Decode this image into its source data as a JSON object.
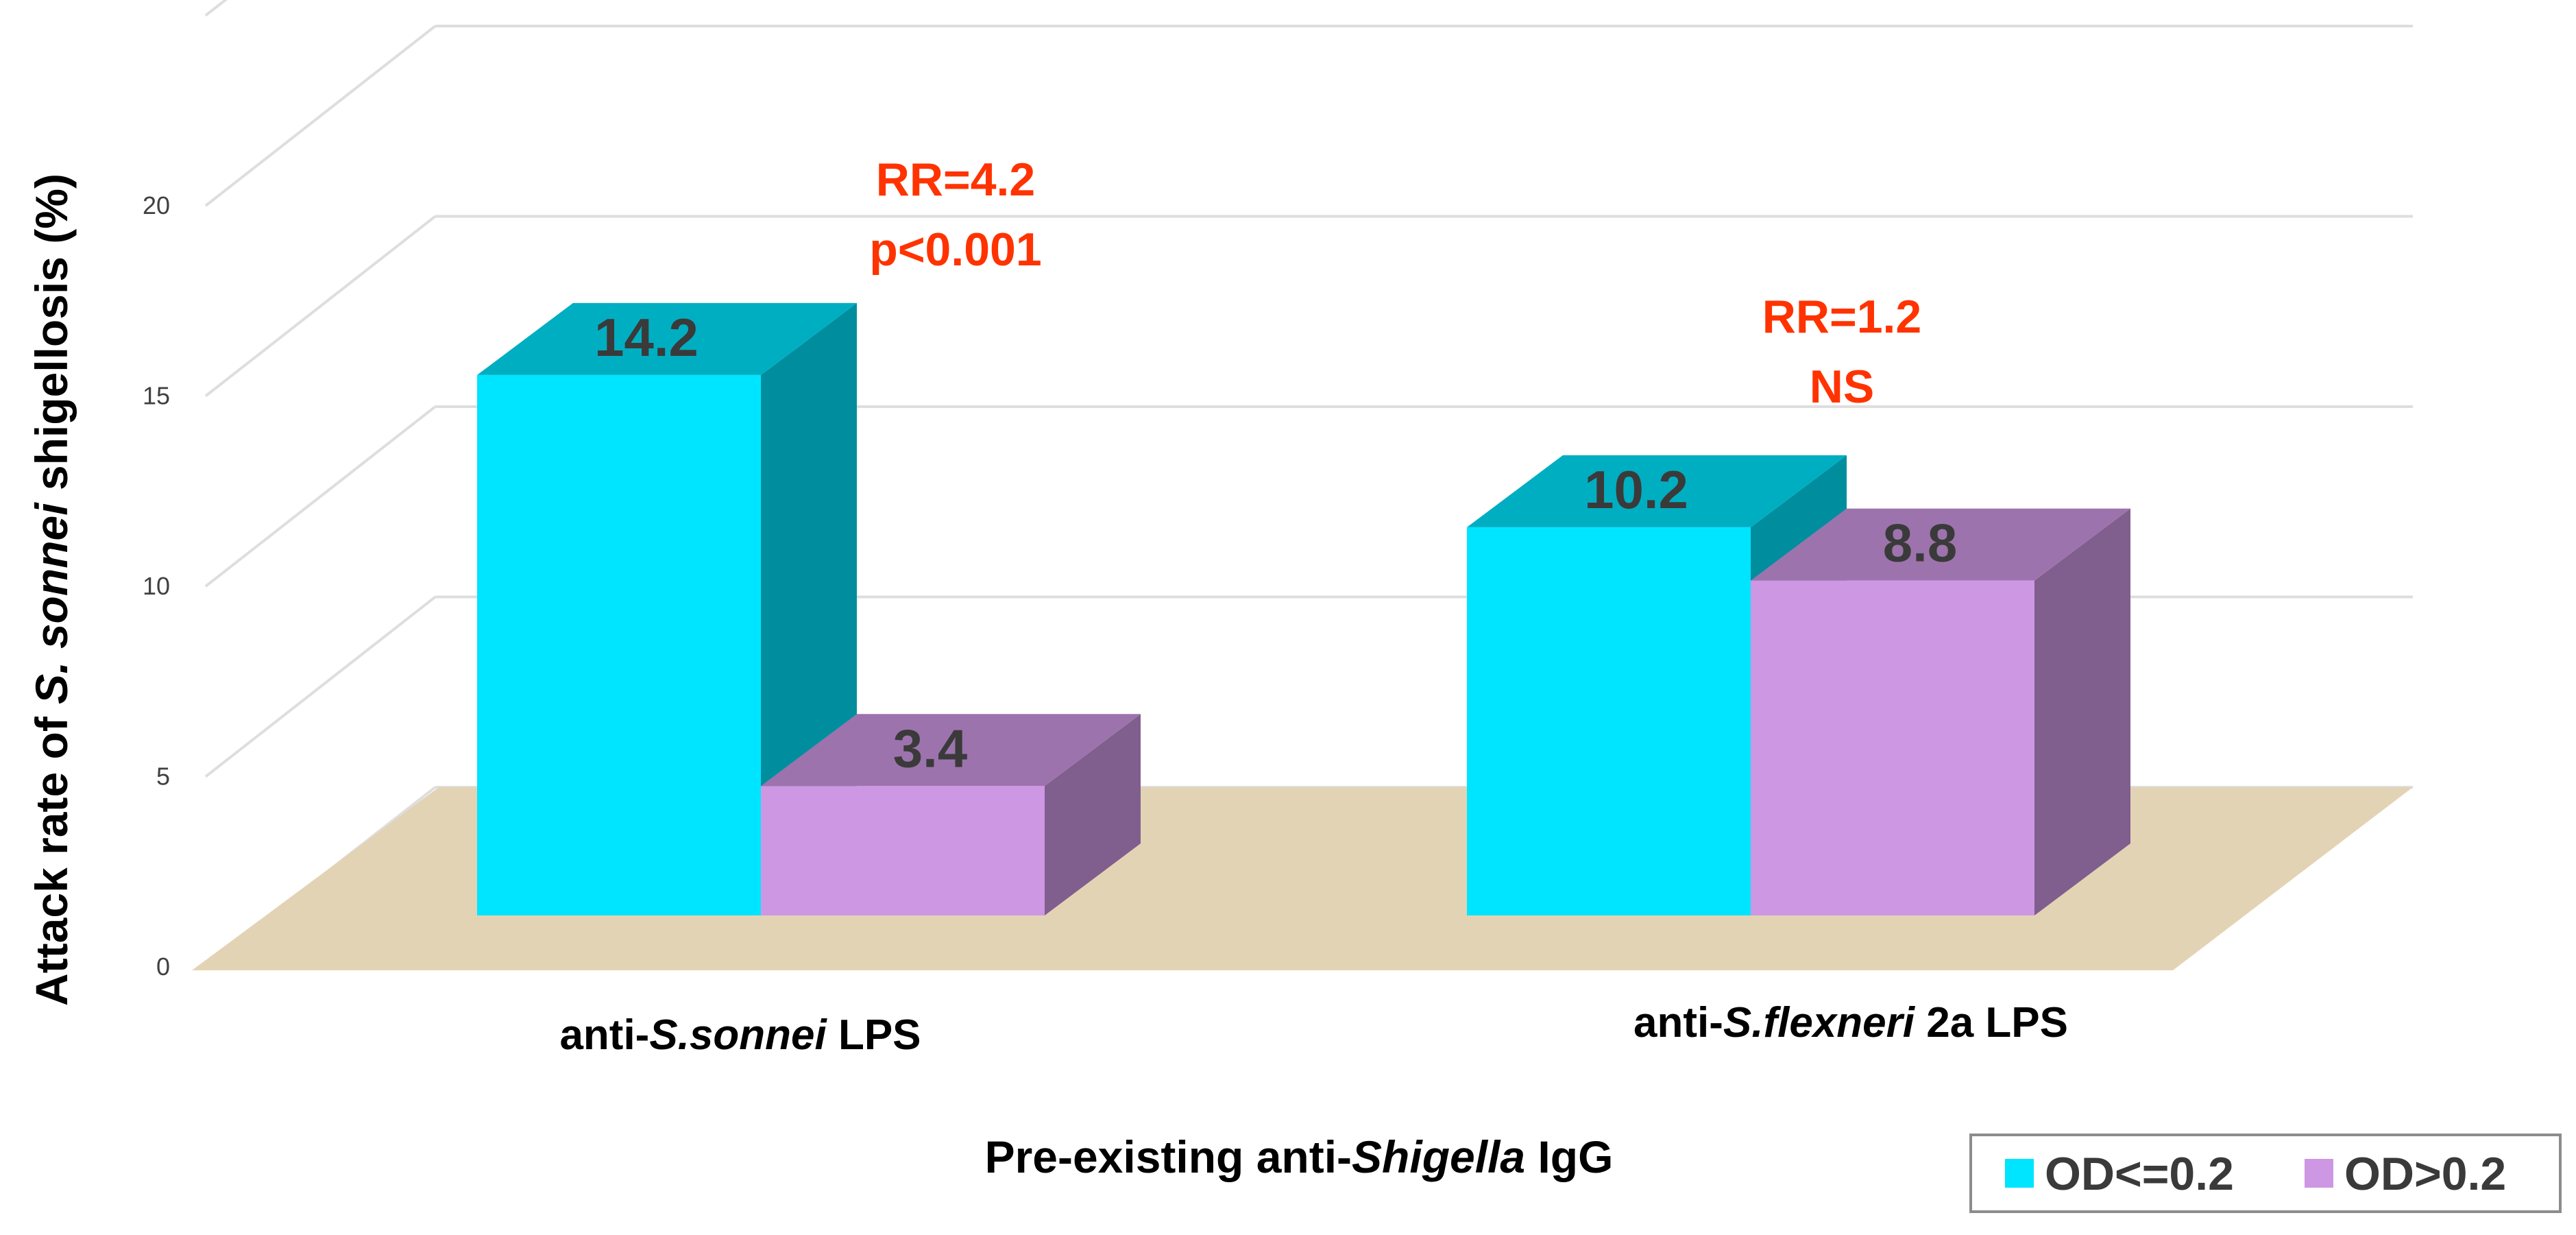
{
  "chart_data": {
    "type": "bar",
    "style": "3d-clustered",
    "title": "",
    "xlabel": {
      "prefix": "Pre-existing anti-",
      "italic": "Shigella",
      "suffix": " IgG"
    },
    "ylabel": {
      "prefix": "Attack  rate of ",
      "italic": "S. sonnei",
      "suffix": " shigellosis (%)"
    },
    "ylim": [
      0,
      25
    ],
    "yticks": [
      0,
      5,
      10,
      15,
      20
    ],
    "categories": [
      {
        "prefix": "anti-",
        "italic": "S.sonnei",
        "suffix": " LPS"
      },
      {
        "prefix": "anti-",
        "italic": "S.flexneri",
        "suffix": " 2a LPS"
      }
    ],
    "series": [
      {
        "name": "OD<=0.2",
        "color": "#00E5FF",
        "values": [
          14.2,
          10.2
        ],
        "labels": [
          "14.2",
          "10.2"
        ]
      },
      {
        "name": "OD>0.2",
        "color": "#CE97E3",
        "values": [
          3.4,
          8.8
        ],
        "labels": [
          "3.4",
          "8.8"
        ]
      }
    ],
    "annotations": [
      {
        "category": 0,
        "lines": [
          "RR=4.2",
          "p<0.001"
        ],
        "color": "#FF3300"
      },
      {
        "category": 1,
        "lines": [
          "RR=1.2",
          "NS"
        ],
        "color": "#FF3300"
      }
    ],
    "legend_position": "bottom-right",
    "floor_color": "#E3D3B5",
    "grid": true
  }
}
